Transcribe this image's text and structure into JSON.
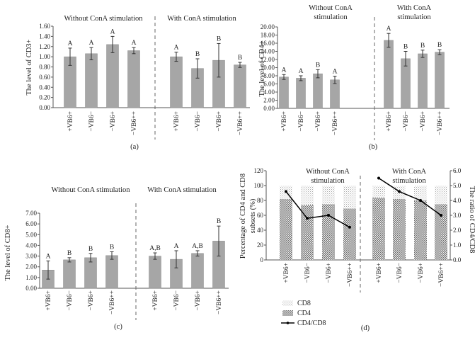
{
  "chart_data": [
    {
      "type": "bar",
      "panel_label": "(a)",
      "ylabel": "The level of CD3+",
      "ylim": [
        0,
        1.6
      ],
      "yticks": [
        "0.00",
        "0.20",
        "0.40",
        "0.60",
        "0.80",
        "1.00",
        "1.20",
        "1.40",
        "1.60"
      ],
      "categories": [
        "+VB6+",
        "−VB6−",
        "−VB6+",
        "−VB6++",
        "+VB6+",
        "−VB6−",
        "−VB6+",
        "−VB6++"
      ],
      "group_titles": [
        "Without ConA stimulation",
        "With ConA stimulation"
      ],
      "values": [
        1.0,
        1.06,
        1.24,
        1.12,
        1.0,
        0.77,
        0.93,
        0.84
      ],
      "errors": [
        0.17,
        0.12,
        0.16,
        0.06,
        0.09,
        0.19,
        0.33,
        0.05
      ],
      "letters": [
        "A",
        "A",
        "A",
        "A",
        "A",
        "B",
        "B",
        "B"
      ]
    },
    {
      "type": "bar",
      "panel_label": "(b)",
      "ylabel": "The level of CD4+",
      "ylim": [
        0,
        20
      ],
      "yticks": [
        "0.00",
        "2.00",
        "4.00",
        "6.00",
        "8.00",
        "10.00",
        "12.00",
        "14.00",
        "16.00",
        "18.00",
        "20.00"
      ],
      "categories": [
        "+VB6+",
        "−VB6−",
        "−VB6+",
        "−VB6++",
        "+VB6+",
        "−VB6−",
        "−VB6+",
        "−VB6++"
      ],
      "group_titles": [
        "Without ConA stimulation",
        "With ConA stimulation"
      ],
      "values": [
        7.7,
        7.4,
        8.5,
        7.0,
        16.7,
        12.2,
        13.4,
        13.8
      ],
      "errors": [
        0.6,
        0.6,
        1.0,
        0.9,
        1.7,
        1.8,
        0.9,
        0.6
      ],
      "letters": [
        "A",
        "A",
        "B",
        "A",
        "A",
        "B",
        "B",
        "B"
      ]
    },
    {
      "type": "bar",
      "panel_label": "(c)",
      "ylabel": "The level of CD8+",
      "ylim": [
        0,
        7
      ],
      "yticks": [
        "0.00",
        "1.00",
        "2.00",
        "3.00",
        "4.00",
        "5.00",
        "6.00",
        "7.00"
      ],
      "categories": [
        "+VB6+",
        "−VB6−",
        "−VB6+",
        "−VB6++",
        "+VB6+",
        "−VB6−",
        "−VB6+",
        "−VB6++"
      ],
      "group_titles": [
        "Without ConA stimulation",
        "With ConA stimulation"
      ],
      "values": [
        1.7,
        2.65,
        2.85,
        3.05,
        3.0,
        2.7,
        3.25,
        4.4
      ],
      "errors": [
        0.85,
        0.2,
        0.4,
        0.35,
        0.3,
        0.8,
        0.25,
        1.4
      ],
      "letters": [
        "A",
        "B",
        "B",
        "B",
        "A,B",
        "A",
        "A,B",
        "B"
      ]
    },
    {
      "type": "bar",
      "panel_label": "(d)",
      "ylabel": "Percentage of CD4 and CD8 subsets (%)",
      "y2label": "The ratio of CD4/CD8",
      "ylim": [
        0,
        120
      ],
      "y2lim": [
        0,
        6
      ],
      "yticks": [
        "0",
        "20",
        "40",
        "60",
        "80",
        "100",
        "120"
      ],
      "y2ticks": [
        "0.0",
        "1.0",
        "2.0",
        "3.0",
        "4.0",
        "5.0",
        "6.0"
      ],
      "categories": [
        "+VB6+",
        "−VB6−",
        "−VB6+",
        "−VB6++",
        "+VB6+",
        "−VB6−",
        "−VB6+",
        "−VB6++"
      ],
      "group_titles": [
        "Without ConA stimulation",
        "With ConA stimulation"
      ],
      "series": [
        {
          "name": "CD4",
          "values": [
            82,
            74,
            75,
            69,
            84,
            82,
            80,
            75
          ]
        },
        {
          "name": "CD8",
          "values": [
            18,
            26,
            25,
            31,
            16,
            18,
            20,
            25
          ]
        },
        {
          "name": "CD4/CD8",
          "values": [
            4.6,
            2.8,
            3.0,
            2.2,
            5.5,
            4.6,
            4.0,
            3.0
          ]
        }
      ],
      "legend": [
        "CD8",
        "CD4",
        "CD4/CD8"
      ]
    }
  ]
}
